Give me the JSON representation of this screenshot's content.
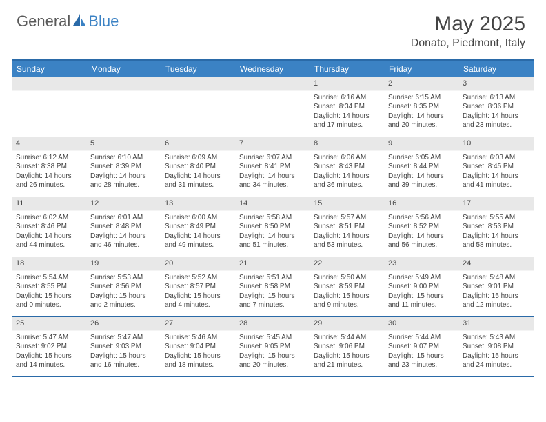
{
  "logo": {
    "text_general": "General",
    "text_blue": "Blue"
  },
  "title": {
    "month": "May 2025",
    "location": "Donato, Piedmont, Italy"
  },
  "colors": {
    "header_bg": "#3b82c4",
    "header_text": "#ffffff",
    "border": "#2a6aa8",
    "daynum_bg": "#e8e8e8",
    "body_text": "#444444",
    "logo_blue": "#3b82c4",
    "logo_gray": "#5a5a5a"
  },
  "day_names": [
    "Sunday",
    "Monday",
    "Tuesday",
    "Wednesday",
    "Thursday",
    "Friday",
    "Saturday"
  ],
  "weeks": [
    [
      {
        "num": "",
        "sunrise": "",
        "sunset": "",
        "daylight": ""
      },
      {
        "num": "",
        "sunrise": "",
        "sunset": "",
        "daylight": ""
      },
      {
        "num": "",
        "sunrise": "",
        "sunset": "",
        "daylight": ""
      },
      {
        "num": "",
        "sunrise": "",
        "sunset": "",
        "daylight": ""
      },
      {
        "num": "1",
        "sunrise": "Sunrise: 6:16 AM",
        "sunset": "Sunset: 8:34 PM",
        "daylight": "Daylight: 14 hours and 17 minutes."
      },
      {
        "num": "2",
        "sunrise": "Sunrise: 6:15 AM",
        "sunset": "Sunset: 8:35 PM",
        "daylight": "Daylight: 14 hours and 20 minutes."
      },
      {
        "num": "3",
        "sunrise": "Sunrise: 6:13 AM",
        "sunset": "Sunset: 8:36 PM",
        "daylight": "Daylight: 14 hours and 23 minutes."
      }
    ],
    [
      {
        "num": "4",
        "sunrise": "Sunrise: 6:12 AM",
        "sunset": "Sunset: 8:38 PM",
        "daylight": "Daylight: 14 hours and 26 minutes."
      },
      {
        "num": "5",
        "sunrise": "Sunrise: 6:10 AM",
        "sunset": "Sunset: 8:39 PM",
        "daylight": "Daylight: 14 hours and 28 minutes."
      },
      {
        "num": "6",
        "sunrise": "Sunrise: 6:09 AM",
        "sunset": "Sunset: 8:40 PM",
        "daylight": "Daylight: 14 hours and 31 minutes."
      },
      {
        "num": "7",
        "sunrise": "Sunrise: 6:07 AM",
        "sunset": "Sunset: 8:41 PM",
        "daylight": "Daylight: 14 hours and 34 minutes."
      },
      {
        "num": "8",
        "sunrise": "Sunrise: 6:06 AM",
        "sunset": "Sunset: 8:43 PM",
        "daylight": "Daylight: 14 hours and 36 minutes."
      },
      {
        "num": "9",
        "sunrise": "Sunrise: 6:05 AM",
        "sunset": "Sunset: 8:44 PM",
        "daylight": "Daylight: 14 hours and 39 minutes."
      },
      {
        "num": "10",
        "sunrise": "Sunrise: 6:03 AM",
        "sunset": "Sunset: 8:45 PM",
        "daylight": "Daylight: 14 hours and 41 minutes."
      }
    ],
    [
      {
        "num": "11",
        "sunrise": "Sunrise: 6:02 AM",
        "sunset": "Sunset: 8:46 PM",
        "daylight": "Daylight: 14 hours and 44 minutes."
      },
      {
        "num": "12",
        "sunrise": "Sunrise: 6:01 AM",
        "sunset": "Sunset: 8:48 PM",
        "daylight": "Daylight: 14 hours and 46 minutes."
      },
      {
        "num": "13",
        "sunrise": "Sunrise: 6:00 AM",
        "sunset": "Sunset: 8:49 PM",
        "daylight": "Daylight: 14 hours and 49 minutes."
      },
      {
        "num": "14",
        "sunrise": "Sunrise: 5:58 AM",
        "sunset": "Sunset: 8:50 PM",
        "daylight": "Daylight: 14 hours and 51 minutes."
      },
      {
        "num": "15",
        "sunrise": "Sunrise: 5:57 AM",
        "sunset": "Sunset: 8:51 PM",
        "daylight": "Daylight: 14 hours and 53 minutes."
      },
      {
        "num": "16",
        "sunrise": "Sunrise: 5:56 AM",
        "sunset": "Sunset: 8:52 PM",
        "daylight": "Daylight: 14 hours and 56 minutes."
      },
      {
        "num": "17",
        "sunrise": "Sunrise: 5:55 AM",
        "sunset": "Sunset: 8:53 PM",
        "daylight": "Daylight: 14 hours and 58 minutes."
      }
    ],
    [
      {
        "num": "18",
        "sunrise": "Sunrise: 5:54 AM",
        "sunset": "Sunset: 8:55 PM",
        "daylight": "Daylight: 15 hours and 0 minutes."
      },
      {
        "num": "19",
        "sunrise": "Sunrise: 5:53 AM",
        "sunset": "Sunset: 8:56 PM",
        "daylight": "Daylight: 15 hours and 2 minutes."
      },
      {
        "num": "20",
        "sunrise": "Sunrise: 5:52 AM",
        "sunset": "Sunset: 8:57 PM",
        "daylight": "Daylight: 15 hours and 4 minutes."
      },
      {
        "num": "21",
        "sunrise": "Sunrise: 5:51 AM",
        "sunset": "Sunset: 8:58 PM",
        "daylight": "Daylight: 15 hours and 7 minutes."
      },
      {
        "num": "22",
        "sunrise": "Sunrise: 5:50 AM",
        "sunset": "Sunset: 8:59 PM",
        "daylight": "Daylight: 15 hours and 9 minutes."
      },
      {
        "num": "23",
        "sunrise": "Sunrise: 5:49 AM",
        "sunset": "Sunset: 9:00 PM",
        "daylight": "Daylight: 15 hours and 11 minutes."
      },
      {
        "num": "24",
        "sunrise": "Sunrise: 5:48 AM",
        "sunset": "Sunset: 9:01 PM",
        "daylight": "Daylight: 15 hours and 12 minutes."
      }
    ],
    [
      {
        "num": "25",
        "sunrise": "Sunrise: 5:47 AM",
        "sunset": "Sunset: 9:02 PM",
        "daylight": "Daylight: 15 hours and 14 minutes."
      },
      {
        "num": "26",
        "sunrise": "Sunrise: 5:47 AM",
        "sunset": "Sunset: 9:03 PM",
        "daylight": "Daylight: 15 hours and 16 minutes."
      },
      {
        "num": "27",
        "sunrise": "Sunrise: 5:46 AM",
        "sunset": "Sunset: 9:04 PM",
        "daylight": "Daylight: 15 hours and 18 minutes."
      },
      {
        "num": "28",
        "sunrise": "Sunrise: 5:45 AM",
        "sunset": "Sunset: 9:05 PM",
        "daylight": "Daylight: 15 hours and 20 minutes."
      },
      {
        "num": "29",
        "sunrise": "Sunrise: 5:44 AM",
        "sunset": "Sunset: 9:06 PM",
        "daylight": "Daylight: 15 hours and 21 minutes."
      },
      {
        "num": "30",
        "sunrise": "Sunrise: 5:44 AM",
        "sunset": "Sunset: 9:07 PM",
        "daylight": "Daylight: 15 hours and 23 minutes."
      },
      {
        "num": "31",
        "sunrise": "Sunrise: 5:43 AM",
        "sunset": "Sunset: 9:08 PM",
        "daylight": "Daylight: 15 hours and 24 minutes."
      }
    ]
  ]
}
